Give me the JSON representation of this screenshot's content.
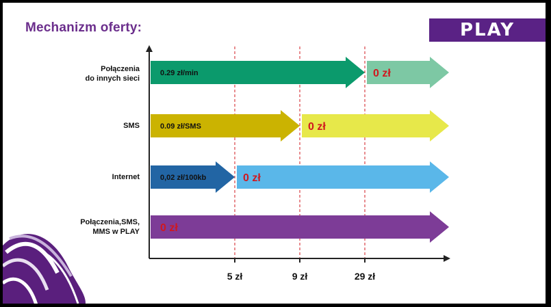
{
  "header": {
    "title": "Mechanizm oferty:"
  },
  "brand": {
    "logo_text": "PLAY",
    "logo_color": "#5a2285"
  },
  "chart_data": {
    "type": "bar",
    "orientation": "horizontal",
    "x_ticks": [
      "5 zł",
      "9 zł",
      "29 zł"
    ],
    "x_tick_values": [
      5,
      9,
      29
    ],
    "rows": [
      {
        "label_line1": "Połączenia",
        "label_line2": "do innych sieci",
        "paid_label": "0.29 zł/min",
        "free_label": "0 zł",
        "threshold": 29,
        "paid_color": "#0b9a6c",
        "free_color": "#7dc8a4"
      },
      {
        "label_line1": "SMS",
        "label_line2": "",
        "paid_label": "0.09 zł/SMS",
        "free_label": "0 zł",
        "threshold": 9,
        "paid_color": "#cbb301",
        "free_color": "#e7e84a"
      },
      {
        "label_line1": "Internet",
        "label_line2": "",
        "paid_label": "0,02 zł/100kb",
        "free_label": "0 zł",
        "threshold": 5,
        "paid_color": "#2265a4",
        "free_color": "#5ab7e9"
      },
      {
        "label_line1": "Połączenia,SMS,",
        "label_line2": "MMS w PLAY",
        "paid_label": "",
        "free_label": "0 zł",
        "threshold": 0,
        "paid_color": "#7d3c97",
        "free_color": "#7d3c97"
      }
    ],
    "paid_text_color": "#111111",
    "free_text_color": "#d0181f"
  }
}
